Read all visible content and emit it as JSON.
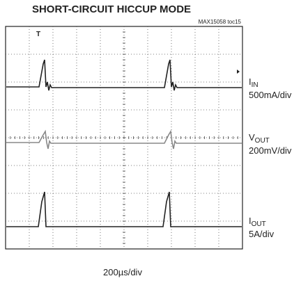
{
  "header": {
    "title": "SHORT-CIRCUIT HICCUP MODE",
    "tag": "MAX15058 toc15"
  },
  "traces": [
    {
      "label": {
        "main": "I",
        "sub": "IN"
      },
      "scale": "500mA/div"
    },
    {
      "label": {
        "main": "V",
        "sub": "OUT"
      },
      "scale": "200mV/div"
    },
    {
      "label": {
        "main": "I",
        "sub": "OUT"
      },
      "scale": "5A/div"
    }
  ],
  "timebase": "200µs/div"
}
